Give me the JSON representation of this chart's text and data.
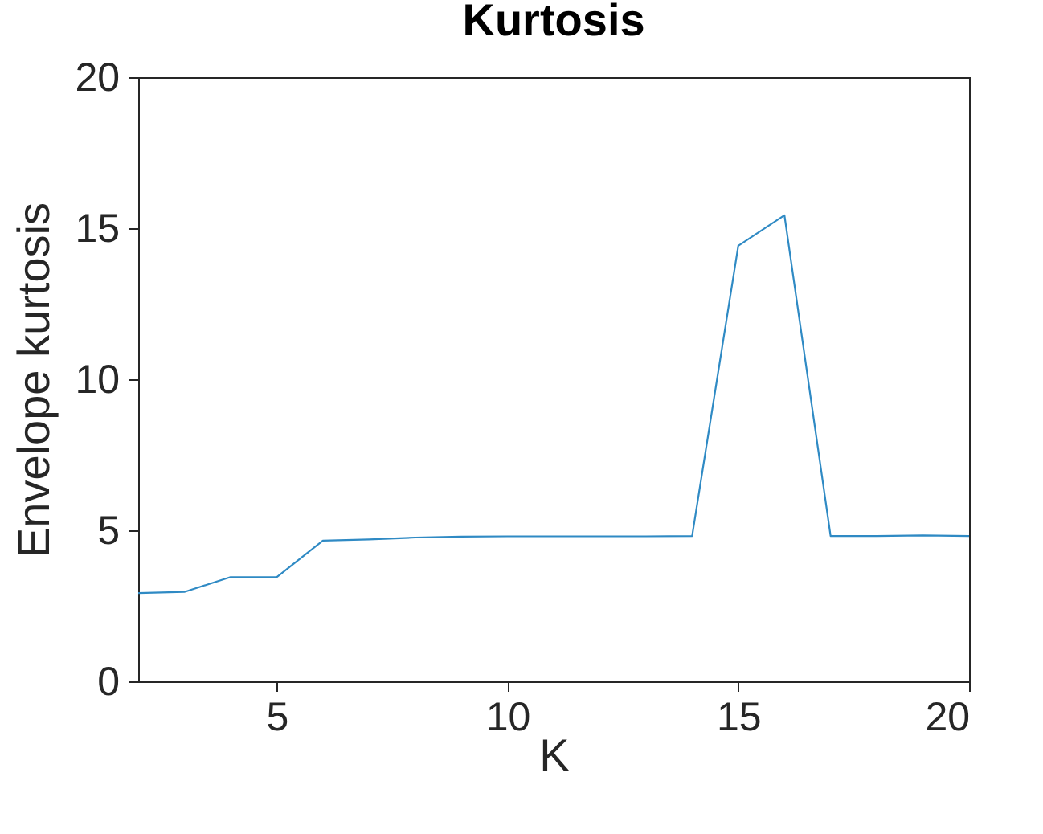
{
  "chart_data": {
    "type": "line",
    "title": "Kurtosis",
    "xlabel": "K",
    "ylabel": "Envelope kurtosis",
    "x": [
      2,
      3,
      4,
      5,
      6,
      7,
      8,
      9,
      10,
      11,
      12,
      13,
      14,
      15,
      16,
      17,
      18,
      19,
      20
    ],
    "series": [
      {
        "color": "#2f8ac4",
        "values": [
          2.92,
          2.96,
          3.45,
          3.45,
          4.66,
          4.7,
          4.76,
          4.79,
          4.8,
          4.8,
          4.8,
          4.8,
          4.81,
          14.42,
          15.43,
          4.81,
          4.81,
          4.83,
          4.81
        ]
      }
    ],
    "xlim": [
      2,
      20
    ],
    "xticks": [
      5,
      10,
      15,
      20
    ],
    "ylim": [
      0,
      20
    ],
    "yticks": [
      0,
      5,
      10,
      15,
      20
    ],
    "grid": false,
    "legend": false,
    "marker": "none",
    "line_style": "solid"
  }
}
